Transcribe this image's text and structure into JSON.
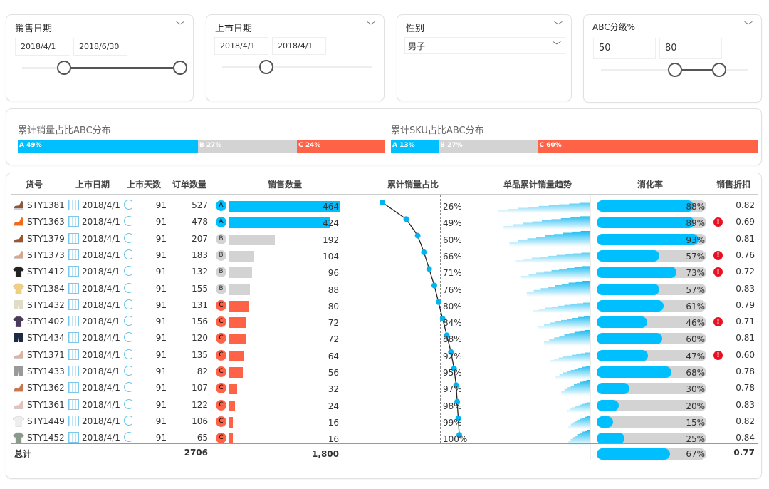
{
  "filters": {
    "sales_date": {
      "title": "销售日期",
      "start": "2018/4/1",
      "end": "2018/6/30"
    },
    "launch_date": {
      "title": "上市日期",
      "start": "2018/4/1",
      "end": "2018/4/1"
    },
    "gender": {
      "title": "性别",
      "value": "男子"
    },
    "abc": {
      "title": "ABC分级%",
      "low": "50",
      "high": "80"
    }
  },
  "abc_dist": {
    "sales": {
      "title": "累计销量占比ABC分布",
      "segments": [
        {
          "label": "A 49%",
          "value": 49,
          "color": "#00bfff"
        },
        {
          "label": "B 27%",
          "value": 27,
          "color": "#d3d3d3"
        },
        {
          "label": "C 24%",
          "value": 24,
          "color": "#ff6347"
        }
      ]
    },
    "sku": {
      "title": "累计SKU占比ABC分布",
      "segments": [
        {
          "label": "A 13%",
          "value": 13,
          "color": "#00bfff"
        },
        {
          "label": "B 27%",
          "value": 27,
          "color": "#d3d3d3"
        },
        {
          "label": "C 60%",
          "value": 60,
          "color": "#ff6347"
        }
      ]
    }
  },
  "table": {
    "headers": [
      "货号",
      "上市日期",
      "上市天数",
      "订单数量",
      "销售数量",
      "累计销量占比",
      "单品累计销量趋势",
      "消化率",
      "销售折扣"
    ],
    "rows": [
      {
        "icon": "shoe-icon",
        "color": "#8a5a3a",
        "sku": "STY1381",
        "date": "2018/4/1",
        "days": "91",
        "orders": "527",
        "cls": "A",
        "qty": 464,
        "cum": 26,
        "st": 88,
        "alert": false,
        "disc": "0.82"
      },
      {
        "icon": "shoe-icon",
        "color": "#f06a1a",
        "sku": "STY1363",
        "date": "2018/4/1",
        "days": "91",
        "orders": "478",
        "cls": "A",
        "qty": 424,
        "cum": 49,
        "st": 89,
        "alert": true,
        "disc": "0.69"
      },
      {
        "icon": "shoe-icon",
        "color": "#a0522d",
        "sku": "STY1379",
        "date": "2018/4/1",
        "days": "91",
        "orders": "207",
        "cls": "B",
        "qty": 192,
        "cum": 60,
        "st": 93,
        "alert": false,
        "disc": "0.81"
      },
      {
        "icon": "shoe-icon",
        "color": "#d9a78a",
        "sku": "STY1373",
        "date": "2018/4/1",
        "days": "91",
        "orders": "183",
        "cls": "B",
        "qty": 104,
        "cum": 66,
        "st": 57,
        "alert": true,
        "disc": "0.76"
      },
      {
        "icon": "shirt-icon",
        "color": "#222222",
        "sku": "STY1412",
        "date": "2018/4/1",
        "days": "91",
        "orders": "132",
        "cls": "B",
        "qty": 96,
        "cum": 71,
        "st": 73,
        "alert": true,
        "disc": "0.72"
      },
      {
        "icon": "shirt-icon",
        "color": "#f0d080",
        "sku": "STY1384",
        "date": "2018/4/1",
        "days": "91",
        "orders": "155",
        "cls": "B",
        "qty": 88,
        "cum": 76,
        "st": 57,
        "alert": false,
        "disc": "0.83"
      },
      {
        "icon": "shorts-icon",
        "color": "#e0dcc8",
        "sku": "STY1432",
        "date": "2018/4/1",
        "days": "91",
        "orders": "131",
        "cls": "C",
        "qty": 80,
        "cum": 80,
        "st": 61,
        "alert": false,
        "disc": "0.79"
      },
      {
        "icon": "shirt-icon",
        "color": "#4a3a5a",
        "sku": "STY1402",
        "date": "2018/4/1",
        "days": "91",
        "orders": "156",
        "cls": "C",
        "qty": 72,
        "cum": 84,
        "st": 46,
        "alert": true,
        "disc": "0.71"
      },
      {
        "icon": "shorts-icon",
        "color": "#1e2a44",
        "sku": "STY1434",
        "date": "2018/4/1",
        "days": "91",
        "orders": "120",
        "cls": "C",
        "qty": 72,
        "cum": 88,
        "st": 60,
        "alert": false,
        "disc": "0.81"
      },
      {
        "icon": "shoe-icon",
        "color": "#e0b0a0",
        "sku": "STY1371",
        "date": "2018/4/1",
        "days": "91",
        "orders": "135",
        "cls": "C",
        "qty": 64,
        "cum": 92,
        "st": 47,
        "alert": true,
        "disc": "0.60"
      },
      {
        "icon": "shorts-icon",
        "color": "#9a9a9a",
        "sku": "STY1433",
        "date": "2018/4/1",
        "days": "91",
        "orders": "82",
        "cls": "C",
        "qty": 56,
        "cum": 95,
        "st": 68,
        "alert": false,
        "disc": "0.78"
      },
      {
        "icon": "shoe-icon",
        "color": "#c87850",
        "sku": "STY1362",
        "date": "2018/4/1",
        "days": "91",
        "orders": "107",
        "cls": "C",
        "qty": 32,
        "cum": 97,
        "st": 30,
        "alert": false,
        "disc": "0.78"
      },
      {
        "icon": "shoe-icon",
        "color": "#e8c0b8",
        "sku": "STY1361",
        "date": "2018/4/1",
        "days": "91",
        "orders": "122",
        "cls": "C",
        "qty": 24,
        "cum": 98,
        "st": 20,
        "alert": false,
        "disc": "0.83"
      },
      {
        "icon": "shirt-icon",
        "color": "#eeeeee",
        "sku": "STY1449",
        "date": "2018/4/1",
        "days": "91",
        "orders": "106",
        "cls": "C",
        "qty": 16,
        "cum": 99,
        "st": 15,
        "alert": false,
        "disc": "0.82"
      },
      {
        "icon": "shirt-icon",
        "color": "#8a9a8a",
        "sku": "STY1452",
        "date": "2018/4/1",
        "days": "91",
        "orders": "65",
        "cls": "C",
        "qty": 16,
        "cum": 100,
        "st": 25,
        "alert": false,
        "disc": "0.84"
      }
    ],
    "total": {
      "label": "总计",
      "orders": "2706",
      "qty": "1,800",
      "st": 67,
      "disc": "0.77"
    },
    "class_colors": {
      "A": "#00bfff",
      "B": "#d3d3d3",
      "C": "#ff6347"
    }
  }
}
